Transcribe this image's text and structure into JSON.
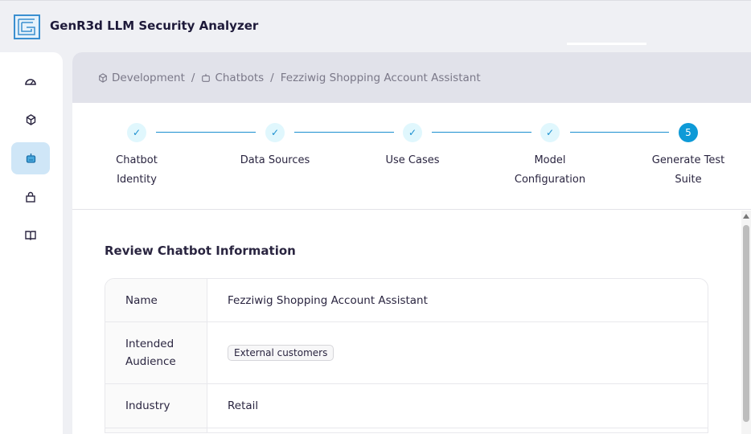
{
  "app": {
    "title": "GenR3d LLM Security Analyzer"
  },
  "sidebar": {
    "items": [
      {
        "icon": "gauge-icon"
      },
      {
        "icon": "cube-icon"
      },
      {
        "icon": "robot-icon",
        "active": true
      },
      {
        "icon": "lock-icon"
      },
      {
        "icon": "book-icon"
      }
    ]
  },
  "breadcrumb": [
    {
      "label": "Development",
      "icon": "cube-icon"
    },
    {
      "label": "Chatbots",
      "icon": "robot-icon"
    },
    {
      "label": "Fezziwig Shopping Account Assistant"
    }
  ],
  "separator": "/",
  "steps": [
    {
      "label": "Chatbot Identity",
      "state": "done"
    },
    {
      "label": "Data Sources",
      "state": "done"
    },
    {
      "label": "Use Cases",
      "state": "done"
    },
    {
      "label": "Model Configuration",
      "state": "done"
    },
    {
      "label": "Generate Test Suite",
      "state": "current",
      "number": "5"
    }
  ],
  "check": "✓",
  "section": {
    "title": "Review Chatbot Information"
  },
  "table": {
    "rows": [
      {
        "label": "Name",
        "value": "Fezziwig Shopping Account Assistant"
      },
      {
        "label": "Intended Audience",
        "tag": "External customers"
      },
      {
        "label": "Industry",
        "value": "Retail"
      }
    ]
  },
  "colors": {
    "accent": "#0e9ad7",
    "active_bg": "#cfe6f7",
    "breadcrumb_bg": "#e1e2ea"
  }
}
